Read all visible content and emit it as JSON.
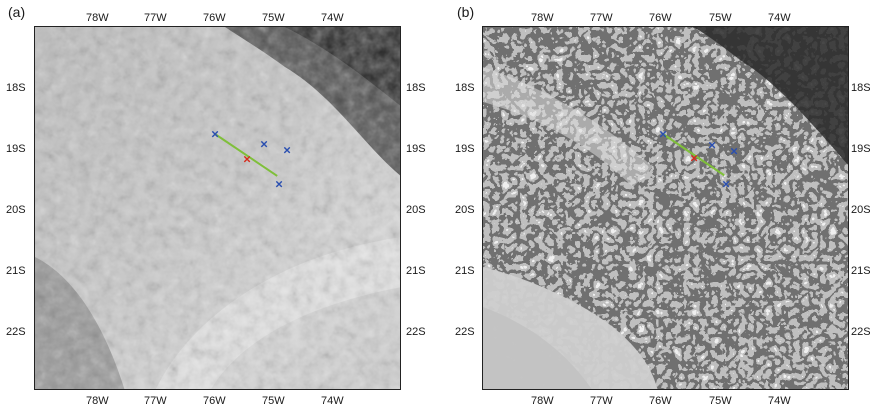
{
  "panels": [
    {
      "label": "(a)",
      "lon_ticks": [
        "78W",
        "77W",
        "76W",
        "75W",
        "74W"
      ],
      "lat_ticks": [
        "18S",
        "19S",
        "20S",
        "21S",
        "22S"
      ],
      "markers": [
        "×",
        "×",
        "×",
        "×",
        "×"
      ]
    },
    {
      "label": "(b)",
      "lon_ticks": [
        "78W",
        "77W",
        "76W",
        "75W",
        "74W"
      ],
      "lat_ticks": [
        "18S",
        "19S",
        "20S",
        "21S",
        "22S"
      ],
      "markers": [
        "×",
        "×",
        "×",
        "×",
        "×"
      ]
    }
  ],
  "colors": {
    "marker_blue": "#2a4fb0",
    "marker_red": "#d62a1c",
    "track_green": "#7fbf3a"
  }
}
